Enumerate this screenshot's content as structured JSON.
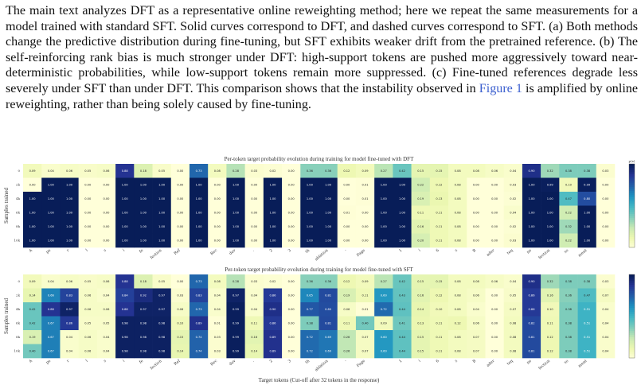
{
  "caption": {
    "text": "The main text analyzes DFT as a representative online reweighting method; here we repeat the same measurements for a model trained with standard SFT. Solid curves correspond to DFT, and dashed curves correspond to SFT. (a) Both methods change the predictive distribution during fine-tuning, but SFT exhibits weaker drift from the pretrained reference. (b) The self-reinforcing rank bias is much stronger under DFT: high-support tokens are pushed more aggressively toward near-deterministic probabilities, while low-support tokens remain more suppressed. (c) Fine-tuned references degrade less severely under SFT than under DFT. This comparison shows that the instability observed in",
    "link": "Figure 1",
    "tail": " is amplified by online reweighting, rather than being solely caused by fine-tuning."
  },
  "chart_data": [
    {
      "type": "heatmap",
      "title": "Per-token target probability evolution during training for model fine-tuned with DFT",
      "ylabel": "Samples trained",
      "xlabel": "",
      "y": [
        "0",
        "2k",
        "4k",
        "6k",
        "8k",
        "10k"
      ],
      "x": [
        "A",
        "pe",
        "r",
        "l",
        "s",
        "i",
        "fe",
        "fection",
        "Ref",
        "",
        "Rec",
        "dev",
        ".",
        "2",
        "3",
        "th",
        "ablation",
        "-",
        "Page",
        "",
        "1",
        "i",
        "6",
        "s",
        "B",
        "ader",
        "teq",
        "ne",
        "fection",
        "so",
        "ment",
        ""
      ],
      "values": [
        [
          0.09,
          0.04,
          0.06,
          0.05,
          0.06,
          0.88,
          0.18,
          0.05,
          0.0,
          0.73,
          0.08,
          0.28,
          0.03,
          0.02,
          0.0,
          0.36,
          0.36,
          0.12,
          0.09,
          0.27,
          0.42,
          0.15,
          0.15,
          0.08,
          0.08,
          0.06,
          0.04,
          0.9,
          0.32,
          0.38,
          0.38,
          0.03
        ],
        [
          0.0,
          1.0,
          1.0,
          0.0,
          0.0,
          1.0,
          1.0,
          1.0,
          0.0,
          1.0,
          0.0,
          1.0,
          0.0,
          1.0,
          0.0,
          1.0,
          1.0,
          0.0,
          0.01,
          1.0,
          1.0,
          0.22,
          0.12,
          0.08,
          0.0,
          0.0,
          0.03,
          1.0,
          0.99,
          0.1,
          0.99,
          0.0
        ],
        [
          1.0,
          1.0,
          1.0,
          0.0,
          0.0,
          1.0,
          1.0,
          1.0,
          0.0,
          1.0,
          0.0,
          1.0,
          0.0,
          1.0,
          0.0,
          1.0,
          1.0,
          0.0,
          0.01,
          1.0,
          1.0,
          0.19,
          0.13,
          0.08,
          0.0,
          0.0,
          0.02,
          1.0,
          1.0,
          0.47,
          0.8,
          0.0
        ],
        [
          1.0,
          1.0,
          1.0,
          0.0,
          0.0,
          1.0,
          1.0,
          1.0,
          0.0,
          1.0,
          0.0,
          1.0,
          0.0,
          1.0,
          0.0,
          1.0,
          1.0,
          0.01,
          0.0,
          1.0,
          1.0,
          0.11,
          0.11,
          0.08,
          0.0,
          0.0,
          0.04,
          1.0,
          1.0,
          0.22,
          1.0,
          0.0
        ],
        [
          1.0,
          1.0,
          1.0,
          0.0,
          0.0,
          1.0,
          1.0,
          1.0,
          0.0,
          1.0,
          0.0,
          1.0,
          0.0,
          1.0,
          0.0,
          1.0,
          1.0,
          0.0,
          0.0,
          1.0,
          1.0,
          0.16,
          0.11,
          0.08,
          0.0,
          0.0,
          0.02,
          1.0,
          1.0,
          0.32,
          1.0,
          0.0
        ],
        [
          1.0,
          1.0,
          1.0,
          0.0,
          0.0,
          1.0,
          1.0,
          1.0,
          0.0,
          1.0,
          0.0,
          1.0,
          0.0,
          1.0,
          0.0,
          1.0,
          1.0,
          0.0,
          0.0,
          1.0,
          1.0,
          0.2,
          0.11,
          0.08,
          0.0,
          0.0,
          0.03,
          1.0,
          1.0,
          0.22,
          1.0,
          0.0
        ]
      ],
      "colorbar": {
        "range": [
          0,
          1
        ],
        "label": "p(x)"
      }
    },
    {
      "type": "heatmap",
      "title": "Per-token target probability evolution during training for model fine-tuned with SFT",
      "ylabel": "Samples trained",
      "xlabel": "Target tokens (Cut-off after 32 tokens in the response)",
      "y": [
        "0",
        "2k",
        "4k",
        "6k",
        "8k",
        "10k"
      ],
      "x": [
        "A",
        "pe",
        "r",
        "l",
        "s",
        "i",
        "fe",
        "fection",
        "Ref",
        "",
        "Rec",
        "dev",
        ".",
        "2",
        "3",
        "th",
        "ablation",
        "-",
        "Page",
        "",
        "1",
        "i",
        "6",
        "s",
        "B",
        "ader",
        "teq",
        "ne",
        "fection",
        "so",
        "ment",
        ""
      ],
      "values": [
        [
          0.09,
          0.04,
          0.06,
          0.05,
          0.06,
          0.88,
          0.18,
          0.05,
          0.0,
          0.73,
          0.08,
          0.28,
          0.03,
          0.02,
          0.0,
          0.36,
          0.36,
          0.12,
          0.09,
          0.27,
          0.42,
          0.15,
          0.15,
          0.08,
          0.08,
          0.06,
          0.04,
          0.9,
          0.32,
          0.38,
          0.38,
          0.03
        ],
        [
          0.14,
          0.66,
          0.83,
          0.06,
          0.04,
          0.84,
          0.92,
          0.97,
          0.03,
          0.83,
          0.04,
          0.97,
          0.04,
          0.86,
          0.0,
          0.65,
          0.81,
          0.19,
          0.11,
          0.6,
          0.43,
          0.16,
          0.12,
          0.08,
          0.06,
          0.0,
          0.05,
          0.86,
          0.16,
          0.36,
          0.47,
          0.07
        ],
        [
          0.42,
          0.88,
          0.97,
          0.06,
          0.06,
          0.88,
          0.97,
          0.97,
          0.06,
          0.73,
          0.04,
          0.99,
          0.04,
          0.9,
          0.0,
          0.77,
          0.8,
          0.06,
          0.01,
          0.72,
          0.44,
          0.14,
          0.1,
          0.08,
          0.04,
          0.0,
          0.07,
          0.86,
          0.1,
          0.38,
          0.51,
          0.04
        ],
        [
          0.42,
          0.67,
          0.86,
          0.05,
          0.05,
          0.98,
          0.98,
          0.98,
          0.1,
          0.89,
          0.01,
          0.99,
          0.11,
          0.86,
          0.0,
          0.38,
          0.81,
          0.11,
          0.4,
          0.09,
          0.41,
          0.13,
          0.11,
          0.12,
          0.06,
          0.0,
          0.08,
          0.82,
          0.11,
          0.38,
          0.51,
          0.04
        ],
        [
          0.19,
          0.67,
          0.04,
          0.06,
          0.04,
          0.98,
          0.98,
          0.98,
          0.15,
          0.74,
          0.03,
          0.99,
          0.16,
          0.89,
          0.0,
          0.72,
          0.69,
          0.26,
          0.07,
          0.6,
          0.44,
          0.15,
          0.11,
          0.08,
          0.07,
          0.0,
          0.08,
          0.81,
          0.12,
          0.38,
          0.51,
          0.04
        ],
        [
          0.4,
          0.67,
          0.04,
          0.06,
          0.04,
          0.98,
          0.98,
          0.98,
          0.14,
          0.74,
          0.03,
          0.99,
          0.14,
          0.89,
          0.0,
          0.72,
          0.69,
          0.26,
          0.07,
          0.6,
          0.44,
          0.15,
          0.11,
          0.08,
          0.07,
          0.0,
          0.08,
          0.81,
          0.12,
          0.38,
          0.51,
          0.04
        ]
      ],
      "colorbar": {
        "range": [
          0,
          1
        ],
        "label": ""
      }
    }
  ]
}
